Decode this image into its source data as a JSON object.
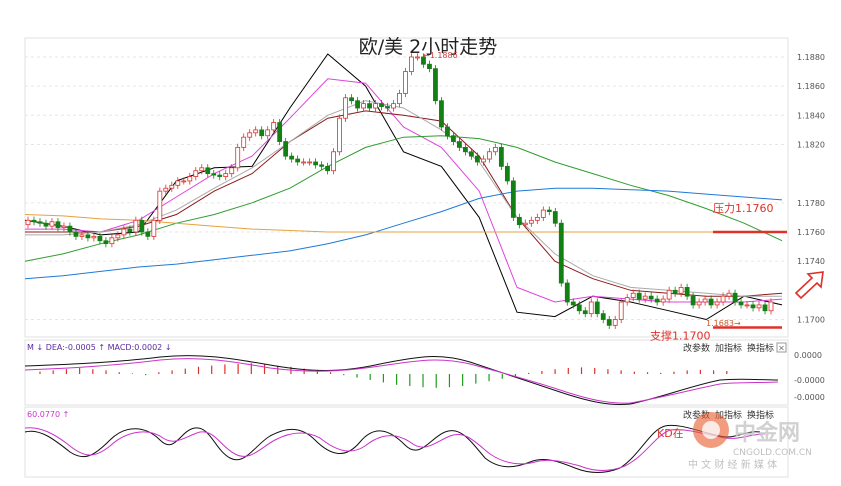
{
  "chart_data": {
    "type": "candlestick",
    "title": "欧/美 2小时走势",
    "price_axis": {
      "ticks": [
        1.188,
        1.186,
        1.184,
        1.182,
        1.178,
        1.176,
        1.174,
        1.17
      ],
      "ylim": [
        1.1688,
        1.1893
      ]
    },
    "annotations": {
      "high_label": "1.1886",
      "low_label": "1.1683",
      "resistance": {
        "label": "压力1.1760",
        "value": 1.176,
        "color": "#e0302a"
      },
      "support": {
        "label": "支撑1.1700",
        "value": 1.17,
        "color": "#e0302a"
      }
    },
    "candles_close": [
      1.1768,
      1.1767,
      1.1766,
      1.1764,
      1.1767,
      1.1763,
      1.1764,
      1.176,
      1.1757,
      1.1758,
      1.1756,
      1.1757,
      1.1754,
      1.1752,
      1.1756,
      1.1758,
      1.1762,
      1.176,
      1.1768,
      1.176,
      1.1757,
      1.1768,
      1.1788,
      1.179,
      1.1792,
      1.1795,
      1.1795,
      1.1798,
      1.1802,
      1.1804,
      1.18,
      1.1799,
      1.1798,
      1.18,
      1.1804,
      1.1818,
      1.1825,
      1.1828,
      1.183,
      1.1826,
      1.183,
      1.1835,
      1.1822,
      1.1812,
      1.181,
      1.1808,
      1.1808,
      1.1808,
      1.1806,
      1.1805,
      1.1802,
      1.1815,
      1.1838,
      1.1852,
      1.185,
      1.1845,
      1.1848,
      1.1845,
      1.1848,
      1.1846,
      1.1845,
      1.1848,
      1.1855,
      1.187,
      1.188,
      1.188,
      1.1875,
      1.1872,
      1.185,
      1.1832,
      1.1826,
      1.1822,
      1.1818,
      1.1815,
      1.1812,
      1.1808,
      1.181,
      1.1815,
      1.1818,
      1.1805,
      1.1795,
      1.177,
      1.1765,
      1.1766,
      1.1768,
      1.177,
      1.1775,
      1.1774,
      1.1766,
      1.1725,
      1.1712,
      1.171,
      1.1706,
      1.1704,
      1.1712,
      1.1704,
      1.17,
      1.1696,
      1.17,
      1.1712,
      1.1715,
      1.1718,
      1.1714,
      1.1716,
      1.1714,
      1.1712,
      1.1714,
      1.172,
      1.1718,
      1.1722,
      1.1716,
      1.171,
      1.1712,
      1.1714,
      1.171,
      1.1712,
      1.1716,
      1.1718,
      1.1712,
      1.171,
      1.171,
      1.1708,
      1.171,
      1.1706,
      1.1712
    ],
    "moving_averages": [
      {
        "color": "#000000",
        "values": [
          1.1768,
          1.1764,
          1.1758,
          1.176,
          1.1795,
          1.1804,
          1.1805,
          1.1845,
          1.1882,
          1.186,
          1.1815,
          1.1805,
          1.177,
          1.1705,
          1.1702,
          1.1716,
          1.1712,
          1.1706,
          1.17,
          1.1716,
          1.171
        ]
      },
      {
        "color": "#dd44dd",
        "values": [
          1.1762,
          1.1762,
          1.176,
          1.1768,
          1.1784,
          1.18,
          1.1812,
          1.1838,
          1.1865,
          1.1862,
          1.1832,
          1.1818,
          1.1788,
          1.1722,
          1.1712,
          1.1716,
          1.1714,
          1.1712,
          1.1712,
          1.1712,
          1.1714
        ]
      },
      {
        "color": "#8b1a1a",
        "values": [
          1.176,
          1.176,
          1.176,
          1.1764,
          1.1772,
          1.1788,
          1.18,
          1.1822,
          1.1838,
          1.1843,
          1.184,
          1.1836,
          1.1812,
          1.177,
          1.174,
          1.1728,
          1.172,
          1.1718,
          1.1716,
          1.1716,
          1.1718
        ]
      },
      {
        "color": "#aaaaaa",
        "values": [
          1.1758,
          1.1758,
          1.176,
          1.1765,
          1.1775,
          1.179,
          1.1804,
          1.1822,
          1.184,
          1.185,
          1.1845,
          1.183,
          1.1808,
          1.177,
          1.1745,
          1.173,
          1.1722,
          1.172,
          1.1718,
          1.1716,
          1.1716
        ]
      },
      {
        "color": "#2e9e2e",
        "values": [
          1.174,
          1.1745,
          1.1752,
          1.1758,
          1.1766,
          1.1772,
          1.178,
          1.179,
          1.1805,
          1.1818,
          1.1825,
          1.1826,
          1.1824,
          1.1818,
          1.1808,
          1.18,
          1.1792,
          1.1785,
          1.1776,
          1.1766,
          1.1754
        ]
      },
      {
        "color": "#1f7ad6",
        "values": [
          1.1728,
          1.173,
          1.1733,
          1.1736,
          1.1738,
          1.1741,
          1.1744,
          1.1747,
          1.1752,
          1.1758,
          1.1766,
          1.1774,
          1.1783,
          1.1788,
          1.179,
          1.179,
          1.1789,
          1.1788,
          1.1786,
          1.1784,
          1.1782
        ]
      },
      {
        "color": "#e6a23c",
        "values": [
          1.1772,
          1.1771,
          1.1769,
          1.1768,
          1.1766,
          1.1764,
          1.1762,
          1.1761,
          1.176,
          1.176,
          1.176,
          1.176,
          1.176,
          1.176,
          1.176,
          1.176,
          1.176,
          1.176,
          1.176,
          1.176,
          1.176
        ]
      }
    ],
    "macd": {
      "legend": "M  ↓ DEA:-0.0005 ↑ MACD:0.0002 ↓",
      "ticks": [
        "0.0000",
        "-0.0000",
        "-0.0000"
      ],
      "buttons": [
        "改参数",
        "加指标",
        "换指标"
      ],
      "histogram": [
        0.4,
        0.6,
        0.8,
        1.0,
        0.8,
        0.6,
        0.3,
        0.1,
        -0.2,
        0.3,
        0.6,
        0.9,
        1.2,
        1.4,
        1.6,
        1.7,
        1.8,
        1.6,
        1.4,
        1.2,
        0.9,
        0.6,
        0.3,
        -0.2,
        -0.6,
        -1.0,
        -1.4,
        -1.8,
        -2.0,
        -2.2,
        -2.3,
        -2.2,
        -2.0,
        -1.6,
        -1.2,
        -0.8,
        -0.4,
        0.2,
        0.5,
        0.8,
        1.0,
        1.1,
        1.0,
        0.8,
        0.6,
        0.4,
        0.3,
        0.2,
        0.4,
        0.6,
        0.7,
        0.6,
        0.5
      ]
    },
    "kd": {
      "legend": "60.0770 ↑",
      "buttons": [
        "改参数",
        "加指标",
        "换指标"
      ],
      "note": "KD在"
    }
  },
  "watermark": {
    "logo_text": "中金网",
    "domain": "CNGOLD.COM.CN",
    "slogan": "中 文 财 经 新 媒 体"
  },
  "colors": {
    "up": "#e0302a",
    "down": "#128012",
    "resistance": "#e0302a",
    "arrow": "#e0302a"
  }
}
